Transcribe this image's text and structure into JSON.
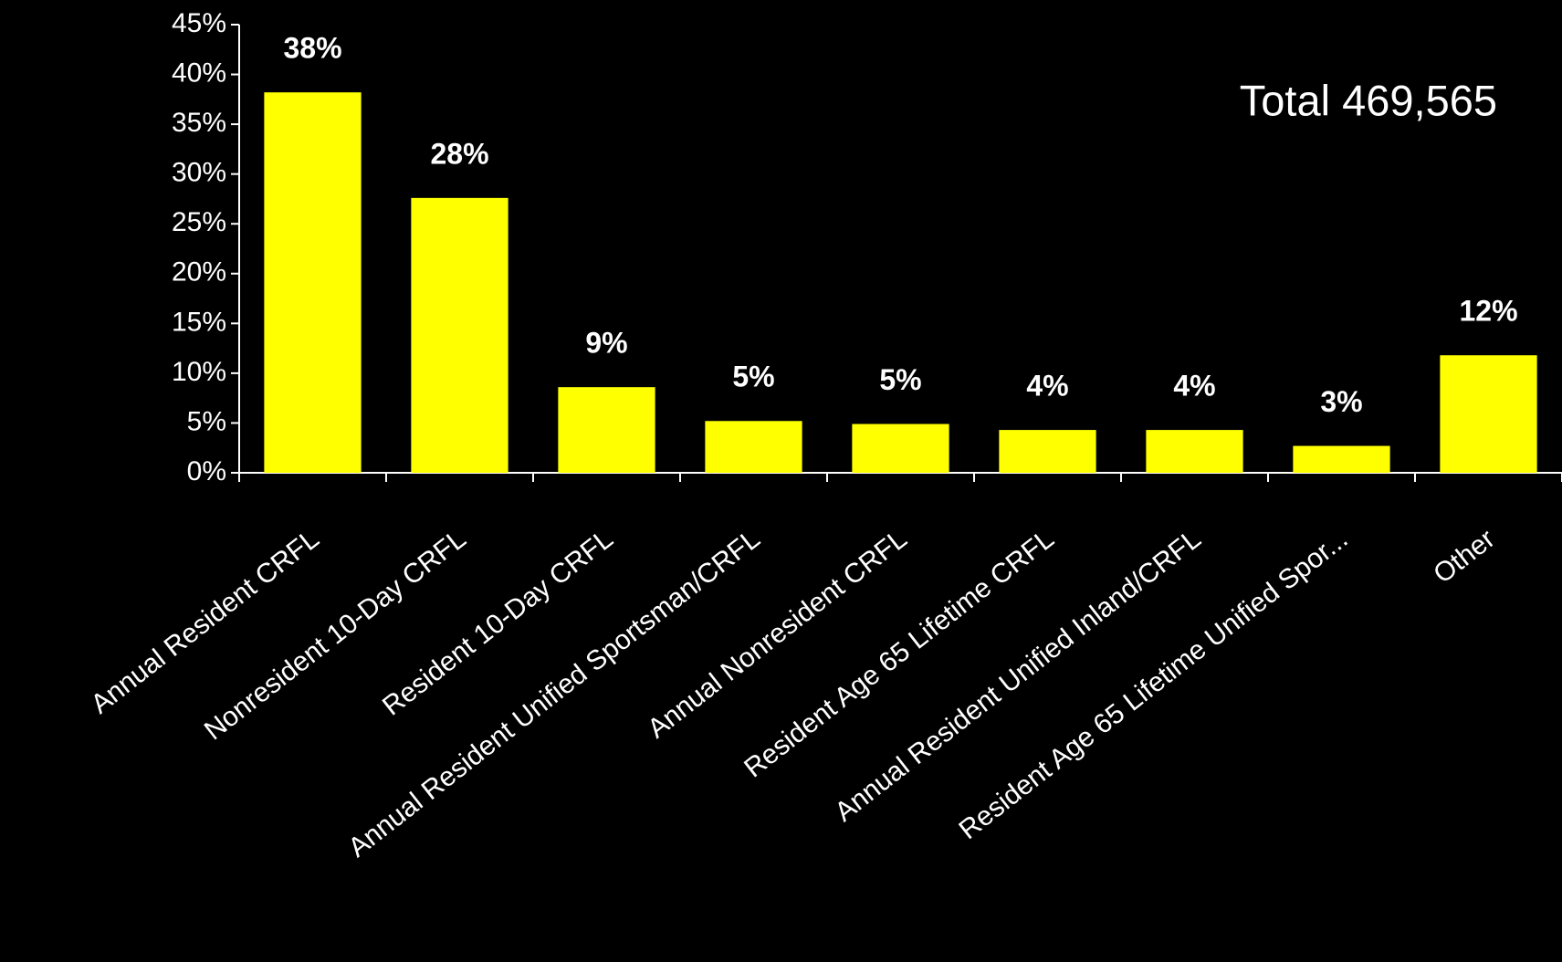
{
  "chart_data": {
    "type": "bar",
    "annotation": "Total 469,565",
    "categories": [
      "Annual Resident CRFL",
      "Nonresident 10-Day CRFL",
      "Resident 10-Day CRFL",
      "Annual Resident Unified Sportsman/CRFL",
      "Annual Nonresident CRFL",
      "Resident Age 65 Lifetime CRFL",
      "Annual Resident Unified Inland/CRFL",
      "Resident Age 65 Lifetime Unified Spor...",
      "Other"
    ],
    "values": [
      38.2,
      27.6,
      8.6,
      5.2,
      4.9,
      4.3,
      4.3,
      2.7,
      11.8
    ],
    "value_labels": [
      "38%",
      "28%",
      "9%",
      "5%",
      "5%",
      "4%",
      "4%",
      "3%",
      "12%"
    ],
    "color": "#ffff00",
    "ylim": [
      0,
      45
    ],
    "yticks": [
      {
        "value": 0,
        "label": "0%"
      },
      {
        "value": 5,
        "label": "5%"
      },
      {
        "value": 10,
        "label": "10%"
      },
      {
        "value": 15,
        "label": "15%"
      },
      {
        "value": 20,
        "label": "20%"
      },
      {
        "value": 25,
        "label": "25%"
      },
      {
        "value": 30,
        "label": "30%"
      },
      {
        "value": 35,
        "label": "35%"
      },
      {
        "value": 40,
        "label": "40%"
      },
      {
        "value": 45,
        "label": "45%"
      }
    ],
    "grid": false
  }
}
